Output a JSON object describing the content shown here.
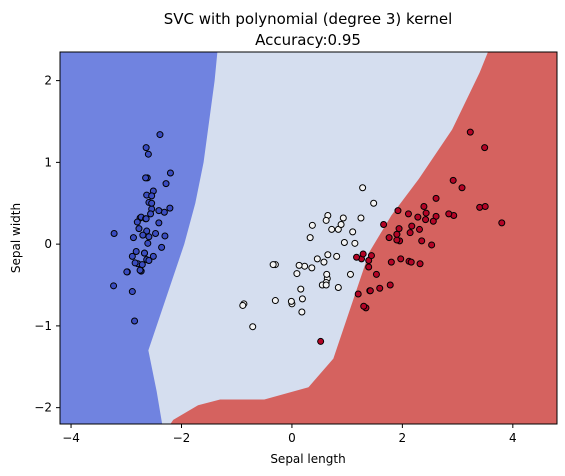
{
  "chart_data": {
    "type": "scatter",
    "title": "SVC with polynomial (degree 3) kernel",
    "subtitle": "Accuracy:0.95",
    "xlabel": "Sepal length",
    "ylabel": "Sepal width",
    "xlim": [
      -4.2,
      4.8
    ],
    "ylim": [
      -2.2,
      2.35
    ],
    "xticks": [
      -4,
      -2,
      0,
      2,
      4
    ],
    "yticks": [
      -2,
      -1,
      0,
      1,
      2
    ],
    "grid": false,
    "region_colors": {
      "class0": "#7083e0",
      "class1": "#d5deef",
      "class2": "#d5625f"
    },
    "boundaries": {
      "class0_right": [
        [
          -2.35,
          -2.2
        ],
        [
          -2.45,
          -1.8
        ],
        [
          -2.6,
          -1.3
        ],
        [
          -2.2,
          -0.5
        ],
        [
          -1.95,
          0
        ],
        [
          -1.75,
          0.5
        ],
        [
          -1.6,
          1.0
        ],
        [
          -1.5,
          1.5
        ],
        [
          -1.4,
          2.0
        ],
        [
          -1.35,
          2.35
        ]
      ],
      "class2_left": [
        [
          -2.2,
          -2.2
        ],
        [
          -2.15,
          -2.15
        ],
        [
          -1.95,
          -2.07
        ],
        [
          -1.7,
          -1.97
        ],
        [
          -1.3,
          -1.9
        ],
        [
          -0.5,
          -1.9
        ],
        [
          0.3,
          -1.75
        ],
        [
          0.75,
          -1.4
        ],
        [
          1.1,
          -0.7
        ],
        [
          1.4,
          -0.1
        ],
        [
          1.8,
          0.35
        ],
        [
          2.3,
          0.8
        ],
        [
          2.9,
          1.4
        ],
        [
          3.4,
          2.1
        ],
        [
          3.55,
          2.35
        ]
      ]
    },
    "series": [
      {
        "color": "#3a4cc0",
        "points": [
          [
            -2.75,
            0.32
          ],
          [
            -2.73,
            -0.33
          ],
          [
            -2.89,
            -0.15
          ],
          [
            -2.75,
            -0.32
          ],
          [
            -2.73,
            0.33
          ],
          [
            -2.28,
            0.74
          ],
          [
            -2.82,
            -0.09
          ],
          [
            -2.63,
            0.16
          ],
          [
            -2.89,
            -0.58
          ],
          [
            -2.67,
            -0.11
          ],
          [
            -2.51,
            0.65
          ],
          [
            -2.61,
            0.01
          ],
          [
            -2.79,
            -0.24
          ],
          [
            -3.23,
            -0.51
          ],
          [
            -2.64,
            1.18
          ],
          [
            -2.39,
            1.34
          ],
          [
            -2.62,
            0.81
          ],
          [
            -2.65,
            0.31
          ],
          [
            -2.2,
            0.87
          ],
          [
            -2.59,
            0.51
          ],
          [
            -2.31,
            0.39
          ],
          [
            -2.54,
            0.43
          ],
          [
            -3.22,
            0.13
          ],
          [
            -2.3,
            0.1
          ],
          [
            -2.36,
            -0.04
          ],
          [
            -2.51,
            -0.15
          ],
          [
            -2.47,
            0.13
          ],
          [
            -2.56,
            0.37
          ],
          [
            -2.64,
            0.31
          ],
          [
            -2.63,
            -0.19
          ],
          [
            -2.59,
            -0.2
          ],
          [
            -2.41,
            0.41
          ],
          [
            -2.65,
            0.81
          ],
          [
            -2.6,
            1.1
          ],
          [
            -2.67,
            -0.11
          ],
          [
            -2.87,
            0.08
          ],
          [
            -2.63,
            0.6
          ],
          [
            -2.8,
            0.27
          ],
          [
            -2.98,
            -0.34
          ],
          [
            -2.59,
            0.09
          ],
          [
            -2.77,
            0.19
          ],
          [
            -2.85,
            -0.94
          ],
          [
            -2.99,
            -0.34
          ],
          [
            -2.41,
            0.26
          ],
          [
            -2.21,
            0.44
          ],
          [
            -2.71,
            -0.25
          ],
          [
            -2.54,
            0.5
          ],
          [
            -2.84,
            -0.23
          ],
          [
            -2.54,
            0.59
          ],
          [
            -2.7,
            0.11
          ]
        ]
      },
      {
        "color": "#f4f4f4",
        "points": [
          [
            1.28,
            0.69
          ],
          [
            0.93,
            0.32
          ],
          [
            0.18,
            -0.83
          ],
          [
            0.64,
            -0.42
          ],
          [
            -0.87,
            -0.73
          ],
          [
            0.65,
            0.35
          ],
          [
            0.23,
            -0.27
          ],
          [
            -0.89,
            -0.75
          ],
          [
            0.58,
            -0.22
          ],
          [
            -0.71,
            -1.01
          ],
          [
            -0.3,
            -0.69
          ],
          [
            0.36,
            -0.29
          ],
          [
            -0.0,
            -0.73
          ],
          [
            0.13,
            -0.26
          ],
          [
            0.62,
            -0.47
          ],
          [
            0.55,
            -0.5
          ],
          [
            0.16,
            -0.55
          ],
          [
            0.84,
            0.18
          ],
          [
            -0.3,
            -0.25
          ],
          [
            0.37,
            0.23
          ],
          [
            0.63,
            -0.37
          ],
          [
            1.14,
            0.01
          ],
          [
            0.89,
            0.24
          ],
          [
            0.33,
            0.08
          ],
          [
            -0.01,
            -0.7
          ],
          [
            0.81,
            -0.15
          ],
          [
            0.65,
            -0.13
          ],
          [
            0.46,
            -0.18
          ],
          [
            1.48,
            0.5
          ],
          [
            1.1,
            0.15
          ],
          [
            0.19,
            -0.67
          ],
          [
            0.95,
            0.02
          ],
          [
            0.84,
            -0.53
          ],
          [
            -0.34,
            -0.25
          ],
          [
            0.72,
            0.18
          ],
          [
            0.09,
            -0.36
          ],
          [
            0.62,
            0.29
          ],
          [
            1.06,
            -0.37
          ],
          [
            0.62,
            -0.5
          ],
          [
            1.25,
            0.32
          ]
        ]
      },
      {
        "color": "#b40426",
        "points": [
          [
            2.53,
            -0.01
          ],
          [
            1.41,
            -0.57
          ],
          [
            2.61,
            0.34
          ],
          [
            1.97,
            -0.18
          ],
          [
            2.35,
            0.04
          ],
          [
            3.4,
            0.45
          ],
          [
            0.52,
            -1.19
          ],
          [
            2.93,
            0.35
          ],
          [
            2.32,
            -0.24
          ],
          [
            2.92,
            0.78
          ],
          [
            1.66,
            0.24
          ],
          [
            1.8,
            -0.22
          ],
          [
            2.17,
            0.22
          ],
          [
            1.34,
            -0.78
          ],
          [
            1.59,
            -0.54
          ],
          [
            1.9,
            0.12
          ],
          [
            1.95,
            0.04
          ],
          [
            3.49,
            1.18
          ],
          [
            3.8,
            0.26
          ],
          [
            1.3,
            -0.76
          ],
          [
            2.43,
            0.38
          ],
          [
            1.2,
            -0.61
          ],
          [
            3.5,
            0.46
          ],
          [
            1.39,
            -0.2
          ],
          [
            2.28,
            0.33
          ],
          [
            2.61,
            0.56
          ],
          [
            1.26,
            -0.18
          ],
          [
            1.29,
            -0.12
          ],
          [
            2.12,
            -0.21
          ],
          [
            2.39,
            0.46
          ],
          [
            2.84,
            0.37
          ],
          [
            3.23,
            1.37
          ],
          [
            2.16,
            -0.22
          ],
          [
            1.44,
            -0.14
          ],
          [
            1.78,
            -0.5
          ],
          [
            3.08,
            0.69
          ],
          [
            2.14,
            0.14
          ],
          [
            1.9,
            0.05
          ],
          [
            1.17,
            -0.16
          ],
          [
            2.11,
            0.37
          ],
          [
            2.31,
            0.18
          ],
          [
            1.92,
            0.41
          ],
          [
            1.42,
            -0.57
          ],
          [
            2.56,
            0.28
          ],
          [
            2.42,
            0.3
          ],
          [
            1.94,
            0.19
          ],
          [
            1.53,
            -0.37
          ],
          [
            1.76,
            0.08
          ],
          [
            1.9,
            0.12
          ],
          [
            1.39,
            -0.28
          ]
        ]
      }
    ]
  }
}
